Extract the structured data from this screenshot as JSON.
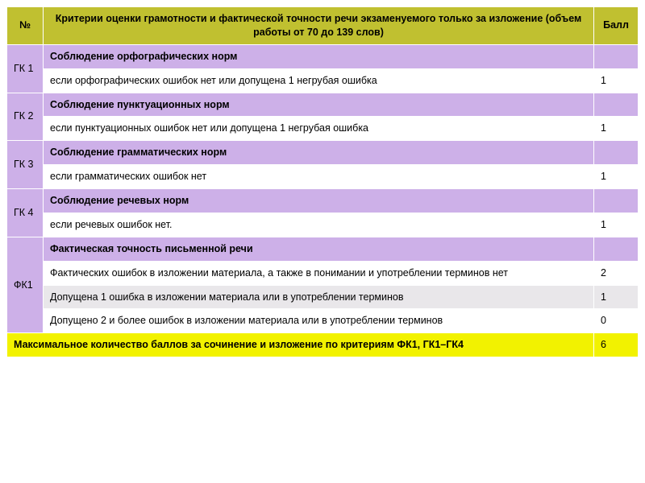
{
  "header": {
    "num": "№",
    "criteria": "Критерии оценки грамотности и фактической точности речи экзаменуемого только за изложение (объем работы от 70 до 139 слов)",
    "score": "Балл"
  },
  "rows": [
    {
      "code": "ГК 1",
      "criterion": "Соблюдение орфографических норм",
      "bg": "purple",
      "bold": true,
      "rowspan": 2,
      "score": ""
    },
    {
      "criterion": "если орфографических ошибок нет или допущена 1 негрубая ошибка",
      "bg": "white",
      "bold": false,
      "score": "1"
    },
    {
      "code": "ГК 2",
      "criterion": "Соблюдение пунктуационных норм",
      "bg": "purple",
      "bold": true,
      "rowspan": 2,
      "score": ""
    },
    {
      "criterion": "если пунктуационных ошибок нет или допущена 1 негрубая ошибка",
      "bg": "white",
      "bold": false,
      "score": "1"
    },
    {
      "code": "ГК 3",
      "criterion": "Соблюдение грамматических норм",
      "bg": "purple",
      "bold": true,
      "rowspan": 2,
      "score": ""
    },
    {
      "criterion": "если грамматических ошибок нет",
      "bg": "white",
      "bold": false,
      "score": "1"
    },
    {
      "code": "ГК 4",
      "criterion": "Соблюдение речевых норм",
      "bg": "purple",
      "bold": true,
      "rowspan": 2,
      "score": ""
    },
    {
      "criterion": "если речевых ошибок нет.",
      "bg": "white",
      "bold": false,
      "score": "1"
    },
    {
      "code": "ФК1",
      "criterion": "Фактическая точность письменной речи",
      "bg": "purple",
      "bold": true,
      "rowspan": 4,
      "score": ""
    },
    {
      "criterion": "Фактических ошибок в изложении материала, а также в понимании и употреблении терминов нет",
      "bg": "white",
      "bold": false,
      "score": "2"
    },
    {
      "criterion": "Допущена 1 ошибка в изложении материала или в употреблении терминов",
      "bg": "gray",
      "bold": false,
      "score": "1"
    },
    {
      "criterion": "Допущено 2 и более ошибок в изложении материала или в употреблении терминов",
      "bg": "white",
      "bold": false,
      "score": "0"
    }
  ],
  "footer": {
    "text": "Максимальное количество баллов за сочинение и изложение по критериям ФК1, ГК1–ГК4",
    "score": "6"
  },
  "colors": {
    "header_bg": "#c0c030",
    "purple_bg": "#cdb0e8",
    "gray_bg": "#e9e7ea",
    "white_bg": "#ffffff",
    "yellow_bg": "#f2f200",
    "border": "#ffffff"
  }
}
